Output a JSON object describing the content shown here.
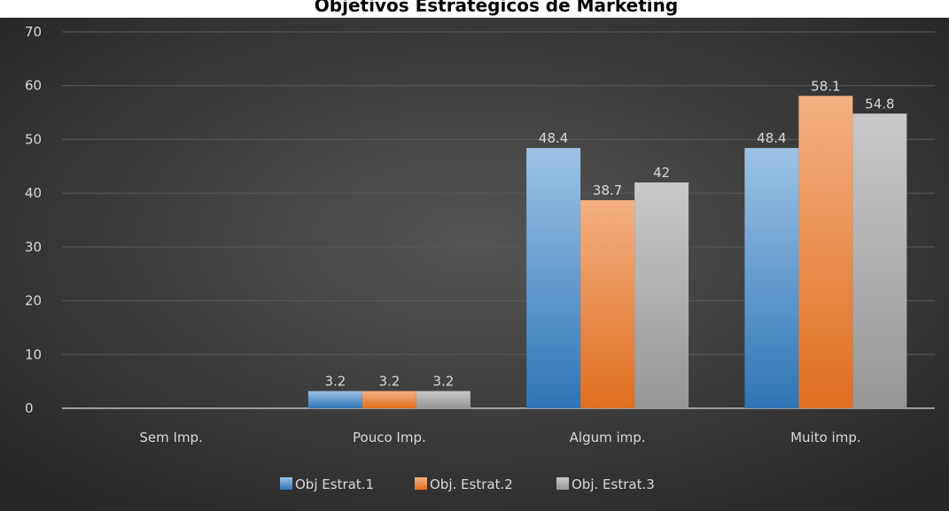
{
  "chart_data": {
    "type": "bar",
    "title": "Objetivos Estratégicos de Marketing",
    "categories": [
      "Sem Imp.",
      "Pouco Imp.",
      "Algum imp.",
      "Muito imp."
    ],
    "series": [
      {
        "name": "Obj Estrat.1",
        "color": "#5b9bd5",
        "values": [
          0,
          3.2,
          48.4,
          48.4
        ]
      },
      {
        "name": "Obj. Estrat.2",
        "color": "#ed7d31",
        "values": [
          0,
          3.2,
          38.7,
          58.1
        ]
      },
      {
        "name": "Obj. Estrat.3",
        "color": "#a5a5a5",
        "values": [
          0,
          3.2,
          42,
          54.8
        ]
      }
    ],
    "ylim": [
      0,
      70
    ],
    "yticks": [
      0,
      10,
      20,
      30,
      40,
      50,
      60,
      70
    ],
    "grid": true,
    "legend_position": "bottom",
    "xlabel": "",
    "ylabel": ""
  }
}
